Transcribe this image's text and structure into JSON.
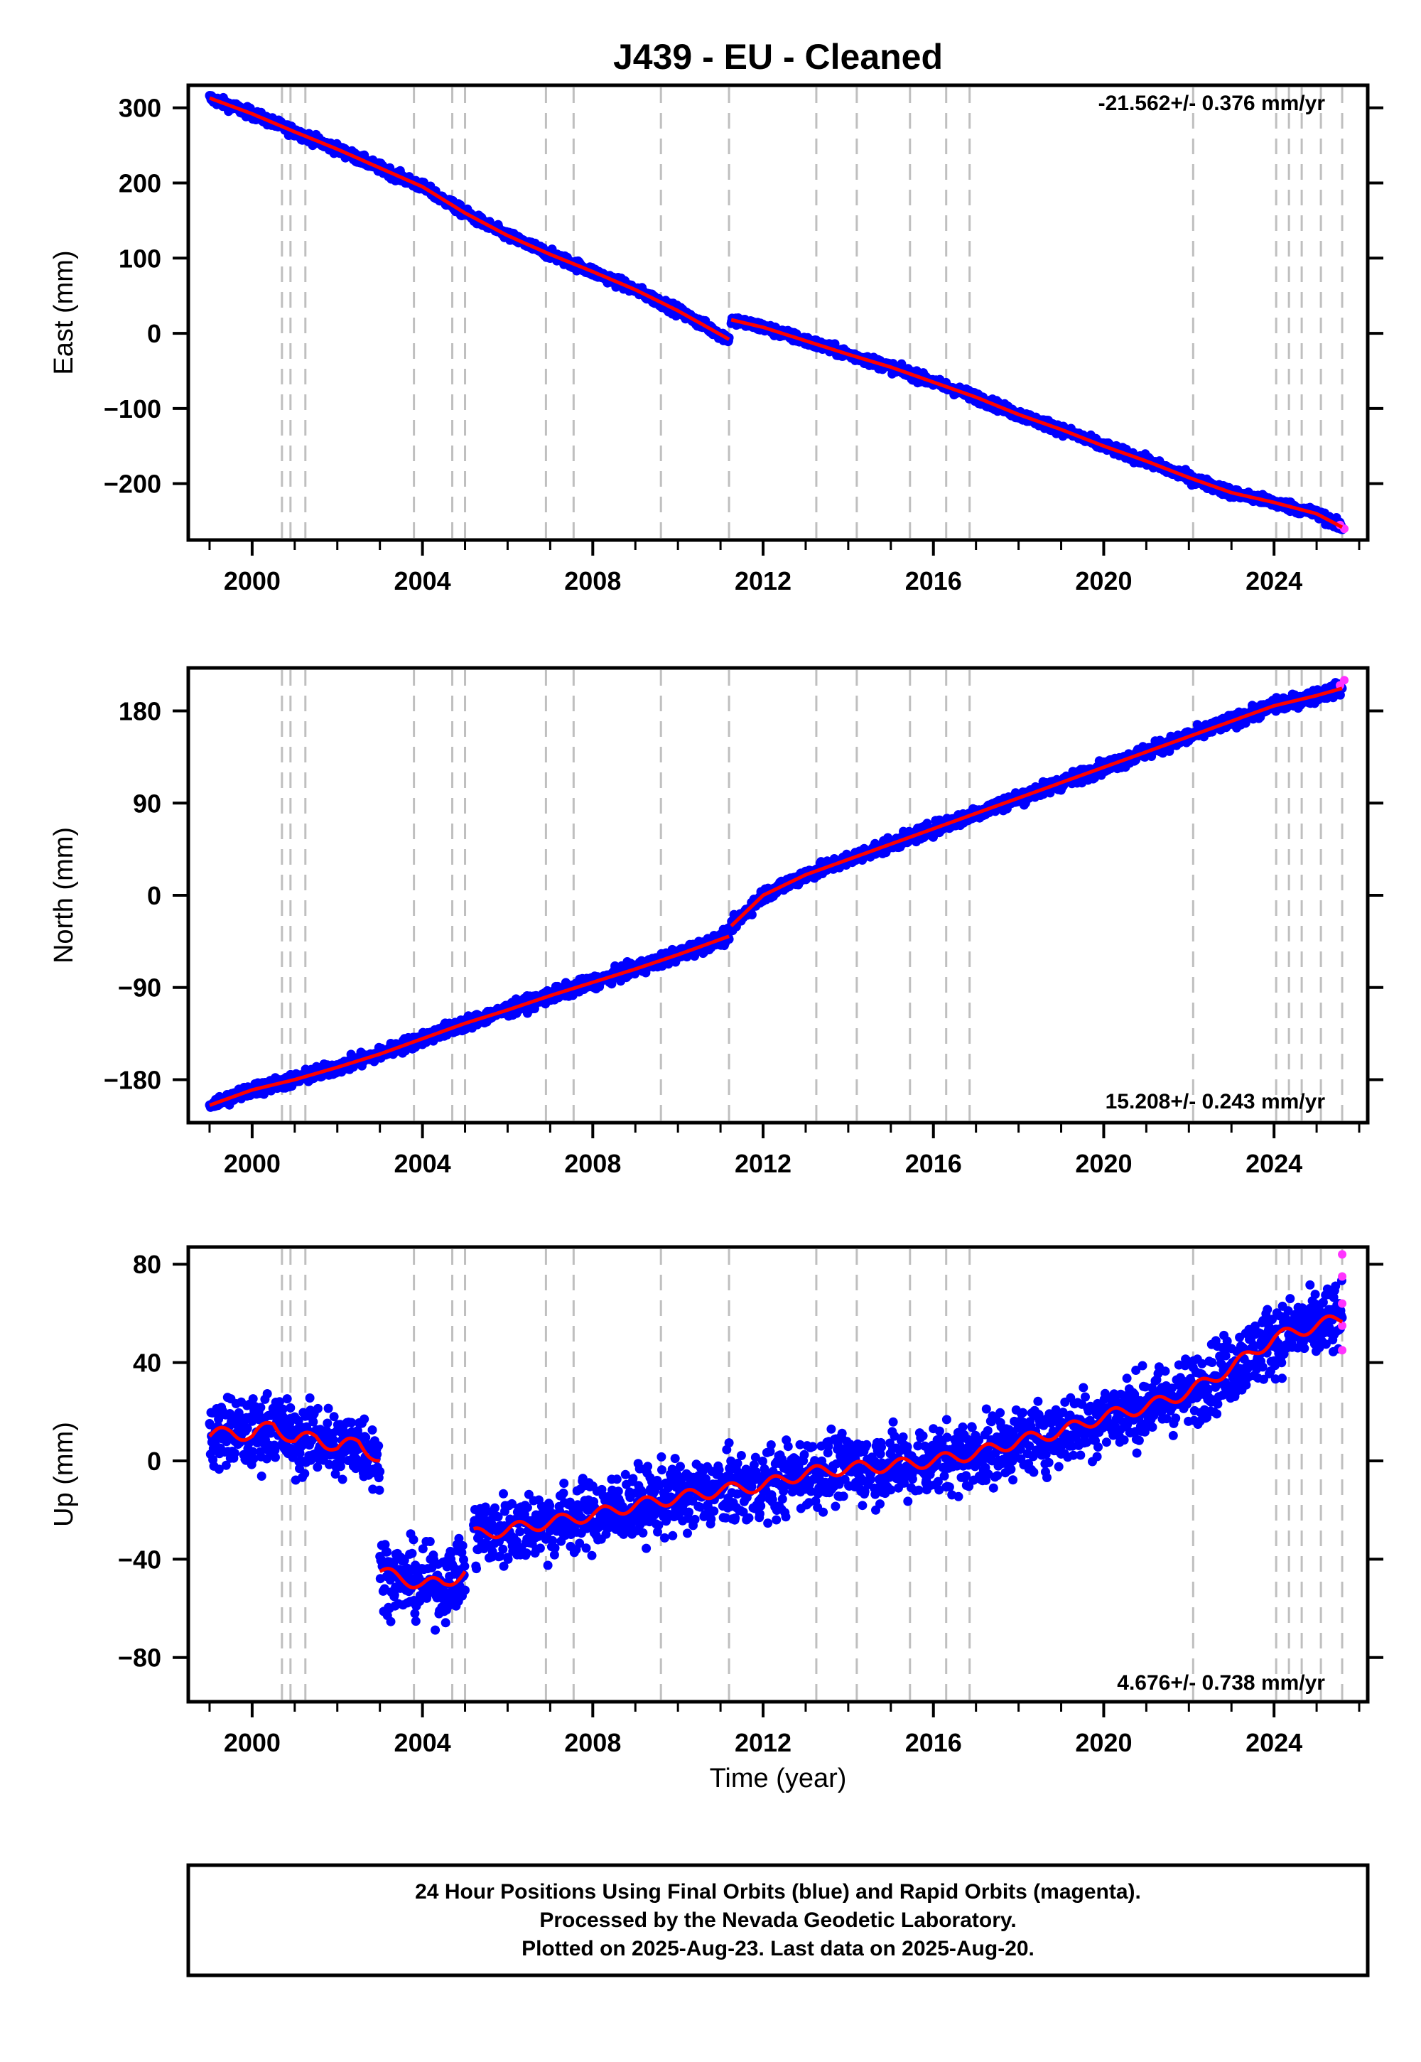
{
  "title": "J439  - EU - Cleaned",
  "colors": {
    "final_orbits": "#0000ff",
    "rapid_orbits": "#ff33ff",
    "model": "#ff0000",
    "event_lines": "#bfbfbf"
  },
  "chart_data": [
    {
      "type": "scatter",
      "panel": "east",
      "ylabel": "East (mm)",
      "xlabel": "",
      "xlim": [
        1998.5,
        2026.2
      ],
      "ylim": [
        -275,
        330
      ],
      "xticks": [
        2000,
        2004,
        2008,
        2012,
        2016,
        2020,
        2024
      ],
      "yticks": [
        -200,
        -100,
        0,
        100,
        200,
        300
      ],
      "rate_label": "-21.562+/- 0.376 mm/yr",
      "series": [
        {
          "role": "final_orbits",
          "x": [
            1999.0,
            2000.0,
            2001.0,
            2002.0,
            2003.0,
            2004.0,
            2005.0,
            2006.0,
            2007.0,
            2008.0,
            2009.0,
            2010.0,
            2011.2
          ],
          "y": [
            313,
            292,
            268,
            245,
            220,
            195,
            160,
            130,
            105,
            82,
            58,
            30,
            -8
          ]
        },
        {
          "role": "final_orbits",
          "x": [
            2011.25,
            2012.0,
            2013.0,
            2014.0,
            2015.0,
            2016.0,
            2017.0,
            2018.0,
            2019.0,
            2020.0,
            2021.0,
            2022.0,
            2023.0,
            2024.0,
            2025.0,
            2025.6
          ],
          "y": [
            18,
            8,
            -10,
            -28,
            -45,
            -65,
            -85,
            -108,
            -128,
            -150,
            -170,
            -192,
            -212,
            -225,
            -240,
            -258
          ]
        },
        {
          "role": "rapid_orbits",
          "x": [
            2025.55,
            2025.65
          ],
          "y": [
            -255,
            -260
          ]
        }
      ]
    },
    {
      "type": "scatter",
      "panel": "north",
      "ylabel": "North (mm)",
      "xlabel": "",
      "xlim": [
        1998.5,
        2026.2
      ],
      "ylim": [
        -222,
        222
      ],
      "xticks": [
        2000,
        2004,
        2008,
        2012,
        2016,
        2020,
        2024
      ],
      "yticks": [
        -180,
        -90,
        0,
        90,
        180
      ],
      "rate_label": "15.208+/- 0.243 mm/yr",
      "series": [
        {
          "role": "final_orbits",
          "x": [
            1999.0,
            2000.0,
            2001.0,
            2002.0,
            2003.0,
            2004.0,
            2005.0,
            2006.0,
            2007.0,
            2008.0,
            2009.0,
            2010.0,
            2011.2
          ],
          "y": [
            -205,
            -190,
            -180,
            -168,
            -155,
            -140,
            -125,
            -112,
            -98,
            -85,
            -72,
            -58,
            -40
          ]
        },
        {
          "role": "final_orbits",
          "x": [
            2011.25,
            2012.0,
            2013.0,
            2014.0,
            2015.0,
            2016.0,
            2017.0,
            2018.0,
            2019.0,
            2020.0,
            2021.0,
            2022.0,
            2023.0,
            2024.0,
            2025.0,
            2025.6
          ],
          "y": [
            -30,
            0,
            20,
            35,
            50,
            65,
            80,
            95,
            110,
            125,
            140,
            155,
            170,
            185,
            195,
            202
          ]
        },
        {
          "role": "rapid_orbits",
          "x": [
            2025.55,
            2025.65
          ],
          "y": [
            205,
            210
          ]
        }
      ]
    },
    {
      "type": "scatter",
      "panel": "up",
      "ylabel": "Up (mm)",
      "xlabel": "Time (year)",
      "xlim": [
        1998.5,
        2026.2
      ],
      "ylim": [
        -98,
        87
      ],
      "xticks": [
        2000,
        2004,
        2008,
        2012,
        2016,
        2020,
        2024
      ],
      "yticks": [
        -80,
        -40,
        0,
        40,
        80
      ],
      "rate_label": "4.676+/- 0.738 mm/yr",
      "series": [
        {
          "role": "final_orbits",
          "x": [
            1999.0,
            1999.5,
            2000.0,
            2000.5,
            2001.0,
            2001.5,
            2002.0,
            2002.5,
            2003.0
          ],
          "y": [
            10,
            12,
            10,
            15,
            8,
            10,
            5,
            8,
            0
          ]
        },
        {
          "role": "final_orbits",
          "x": [
            2003.0,
            2003.5,
            2004.0,
            2004.5,
            2005.0
          ],
          "y": [
            -45,
            -48,
            -50,
            -50,
            -45
          ]
        },
        {
          "role": "final_orbits",
          "x": [
            2005.2,
            2006.0,
            2007.0,
            2008.0,
            2009.0,
            2010.0,
            2011.0,
            2012.0,
            2013.0,
            2014.0,
            2015.0,
            2016.0,
            2017.0,
            2018.0,
            2019.0,
            2020.0,
            2021.0,
            2022.0,
            2023.0,
            2024.0,
            2025.0,
            2025.6
          ],
          "y": [
            -30,
            -28,
            -25,
            -22,
            -18,
            -15,
            -12,
            -10,
            -5,
            -3,
            -2,
            0,
            3,
            8,
            12,
            18,
            22,
            28,
            38,
            50,
            55,
            58
          ]
        },
        {
          "role": "rapid_orbits",
          "x": [
            2025.6,
            2025.6,
            2025.6,
            2025.6,
            2025.6
          ],
          "y": [
            45,
            55,
            64,
            75,
            84
          ]
        }
      ]
    }
  ],
  "footer": {
    "line1": "24 Hour Positions Using Final Orbits (blue) and Rapid Orbits (magenta).",
    "line2": "Processed by the Nevada Geodetic Laboratory.",
    "line3": "Plotted on 2025-Aug-23. Last data on 2025-Aug-20."
  }
}
